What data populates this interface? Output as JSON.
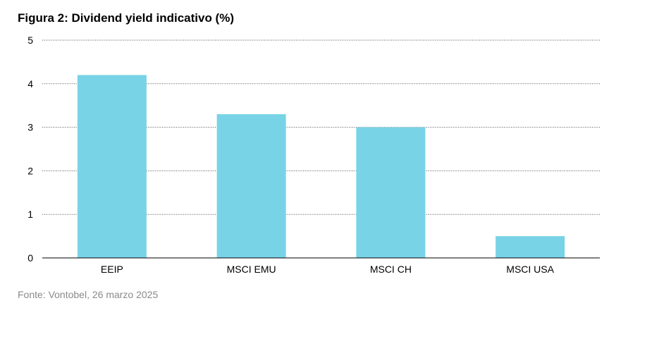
{
  "title": "Figura 2: Dividend yield indicativo (%)",
  "source": "Fonte: Vontobel, 26 marzo 2025",
  "colors": {
    "bar": "#79d3e6",
    "grid": "#555555",
    "axis": "#000000",
    "text": "#000000",
    "source": "#8a8a8a"
  },
  "chart_data": {
    "type": "bar",
    "categories": [
      "EEIP",
      "MSCI EMU",
      "MSCI CH",
      "MSCI USA"
    ],
    "values": [
      4.2,
      3.3,
      3.0,
      0.5
    ],
    "ylim": [
      0,
      5
    ],
    "yticks": [
      0,
      1,
      2,
      3,
      4,
      5
    ],
    "grid": "horizontal dotted",
    "legend": "none"
  }
}
